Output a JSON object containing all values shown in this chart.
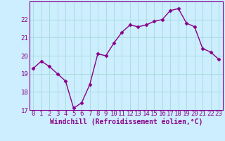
{
  "x": [
    0,
    1,
    2,
    3,
    4,
    5,
    6,
    7,
    8,
    9,
    10,
    11,
    12,
    13,
    14,
    15,
    16,
    17,
    18,
    19,
    20,
    21,
    22,
    23
  ],
  "y": [
    19.3,
    19.7,
    19.4,
    19.0,
    18.6,
    17.1,
    17.4,
    18.4,
    20.1,
    20.0,
    20.7,
    21.3,
    21.7,
    21.6,
    21.7,
    21.9,
    22.0,
    22.5,
    22.6,
    21.8,
    21.6,
    20.4,
    20.2,
    19.8
  ],
  "line_color": "#880088",
  "marker": "D",
  "marker_size": 2.5,
  "bg_color": "#cceeff",
  "grid_color": "#aadddd",
  "xlabel": "Windchill (Refroidissement éolien,°C)",
  "xlabel_color": "#880088",
  "tick_color": "#880088",
  "ylim": [
    17,
    23
  ],
  "xlim": [
    -0.5,
    23.5
  ],
  "yticks": [
    17,
    18,
    19,
    20,
    21,
    22
  ],
  "xticks": [
    0,
    1,
    2,
    3,
    4,
    5,
    6,
    7,
    8,
    9,
    10,
    11,
    12,
    13,
    14,
    15,
    16,
    17,
    18,
    19,
    20,
    21,
    22,
    23
  ],
  "line_width": 1.0,
  "tick_fontsize": 6.5,
  "xlabel_fontsize": 7.0
}
